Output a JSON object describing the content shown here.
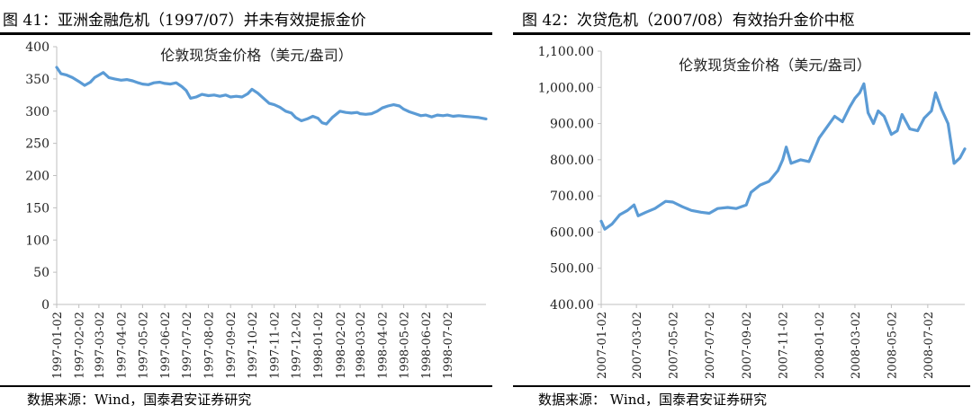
{
  "figures": [
    {
      "title": "图 41：亚洲金融危机（1997/07）并未有效提振金价",
      "source": "数据来源：Wind，国泰君安证券研究"
    },
    {
      "title": "图 42：次贷危机（2007/08）有效抬升金价中枢",
      "source": "数据来源： Wind，国泰君安证券研究"
    }
  ],
  "chart_data": [
    {
      "type": "line",
      "title": "",
      "legend": "伦敦现货金价格（美元/盎司）",
      "legend_position": "top-center",
      "grid": false,
      "line_color": "#5b9bd5",
      "ylim": [
        0,
        400
      ],
      "yticks": [
        "0",
        "50",
        "100",
        "150",
        "200",
        "250",
        "300",
        "350",
        "400"
      ],
      "xticks": [
        "1997-01-02",
        "1997-02-02",
        "1997-03-02",
        "1997-04-02",
        "1997-05-02",
        "1997-06-02",
        "1997-07-02",
        "1997-08-02",
        "1997-09-02",
        "1997-10-02",
        "1997-11-02",
        "1997-12-02",
        "1998-01-02",
        "1998-02-02",
        "1998-03-02",
        "1998-04-02",
        "1998-05-02",
        "1998-06-02",
        "1998-07-02"
      ],
      "xlim": [
        "1997-01-02",
        "1998-08-25"
      ],
      "series": [
        {
          "name": "伦敦现货金价格（美元/盎司）",
          "points": [
            [
              "1997-01-02",
              368
            ],
            [
              "1997-01-08",
              358
            ],
            [
              "1997-01-16",
              356
            ],
            [
              "1997-01-24",
              352
            ],
            [
              "1997-02-02",
              346
            ],
            [
              "1997-02-10",
              340
            ],
            [
              "1997-02-18",
              345
            ],
            [
              "1997-02-24",
              352
            ],
            [
              "1997-03-02",
              356
            ],
            [
              "1997-03-08",
              360
            ],
            [
              "1997-03-16",
              352
            ],
            [
              "1997-03-24",
              350
            ],
            [
              "1997-04-02",
              348
            ],
            [
              "1997-04-10",
              349
            ],
            [
              "1997-04-18",
              347
            ],
            [
              "1997-04-26",
              344
            ],
            [
              "1997-05-02",
              342
            ],
            [
              "1997-05-10",
              341
            ],
            [
              "1997-05-18",
              344
            ],
            [
              "1997-05-26",
              345
            ],
            [
              "1997-06-02",
              343
            ],
            [
              "1997-06-10",
              342
            ],
            [
              "1997-06-18",
              344
            ],
            [
              "1997-06-26",
              338
            ],
            [
              "1997-07-02",
              332
            ],
            [
              "1997-07-08",
              320
            ],
            [
              "1997-07-16",
              322
            ],
            [
              "1997-07-24",
              326
            ],
            [
              "1997-08-02",
              324
            ],
            [
              "1997-08-10",
              325
            ],
            [
              "1997-08-18",
              323
            ],
            [
              "1997-08-26",
              325
            ],
            [
              "1997-09-02",
              322
            ],
            [
              "1997-09-10",
              323
            ],
            [
              "1997-09-18",
              322
            ],
            [
              "1997-09-26",
              327
            ],
            [
              "1997-10-02",
              334
            ],
            [
              "1997-10-10",
              328
            ],
            [
              "1997-10-18",
              320
            ],
            [
              "1997-10-26",
              312
            ],
            [
              "1997-11-02",
              310
            ],
            [
              "1997-11-10",
              306
            ],
            [
              "1997-11-18",
              300
            ],
            [
              "1997-11-26",
              297
            ],
            [
              "1997-12-02",
              290
            ],
            [
              "1997-12-10",
              285
            ],
            [
              "1997-12-18",
              288
            ],
            [
              "1997-12-26",
              292
            ],
            [
              "1998-01-02",
              289
            ],
            [
              "1998-01-08",
              282
            ],
            [
              "1998-01-14",
              280
            ],
            [
              "1998-01-22",
              290
            ],
            [
              "1998-02-02",
              300
            ],
            [
              "1998-02-10",
              298
            ],
            [
              "1998-02-18",
              297
            ],
            [
              "1998-02-26",
              298
            ],
            [
              "1998-03-02",
              296
            ],
            [
              "1998-03-10",
              295
            ],
            [
              "1998-03-18",
              296
            ],
            [
              "1998-03-26",
              300
            ],
            [
              "1998-04-02",
              305
            ],
            [
              "1998-04-10",
              308
            ],
            [
              "1998-04-18",
              310
            ],
            [
              "1998-04-26",
              308
            ],
            [
              "1998-05-02",
              303
            ],
            [
              "1998-05-10",
              299
            ],
            [
              "1998-05-18",
              296
            ],
            [
              "1998-05-26",
              293
            ],
            [
              "1998-06-02",
              294
            ],
            [
              "1998-06-10",
              291
            ],
            [
              "1998-06-18",
              294
            ],
            [
              "1998-06-26",
              293
            ],
            [
              "1998-07-02",
              294
            ],
            [
              "1998-07-10",
              292
            ],
            [
              "1998-07-18",
              293
            ],
            [
              "1998-07-26",
              292
            ],
            [
              "1998-08-05",
              291
            ],
            [
              "1998-08-15",
              290
            ],
            [
              "1998-08-25",
              288
            ]
          ]
        }
      ]
    },
    {
      "type": "line",
      "title": "",
      "legend": "伦敦现货金价格（美元/盎司）",
      "legend_position": "top-center",
      "grid": false,
      "line_color": "#5b9bd5",
      "ylim": [
        400,
        1100
      ],
      "yticks": [
        "400.00",
        "500.00",
        "600.00",
        "700.00",
        "800.00",
        "900.00",
        "1,000.00",
        "1,100.00"
      ],
      "xticks": [
        "2007-01-02",
        "2007-03-02",
        "2007-05-02",
        "2007-07-02",
        "2007-09-02",
        "2007-11-02",
        "2008-01-02",
        "2008-03-02",
        "2008-05-02",
        "2008-07-02"
      ],
      "xlim": [
        "2007-01-02",
        "2008-09-02"
      ],
      "series": [
        {
          "name": "伦敦现货金价格（美元/盎司）",
          "points": [
            [
              "2007-01-02",
              630
            ],
            [
              "2007-01-08",
              608
            ],
            [
              "2007-01-20",
              622
            ],
            [
              "2007-02-02",
              648
            ],
            [
              "2007-02-15",
              660
            ],
            [
              "2007-02-26",
              675
            ],
            [
              "2007-03-05",
              645
            ],
            [
              "2007-03-18",
              655
            ],
            [
              "2007-04-02",
              665
            ],
            [
              "2007-04-20",
              685
            ],
            [
              "2007-05-02",
              683
            ],
            [
              "2007-05-18",
              670
            ],
            [
              "2007-06-02",
              660
            ],
            [
              "2007-06-18",
              655
            ],
            [
              "2007-07-02",
              652
            ],
            [
              "2007-07-16",
              665
            ],
            [
              "2007-08-02",
              668
            ],
            [
              "2007-08-16",
              665
            ],
            [
              "2007-09-02",
              675
            ],
            [
              "2007-09-10",
              710
            ],
            [
              "2007-09-25",
              730
            ],
            [
              "2007-10-10",
              740
            ],
            [
              "2007-10-25",
              770
            ],
            [
              "2007-11-02",
              800
            ],
            [
              "2007-11-08",
              835
            ],
            [
              "2007-11-16",
              790
            ],
            [
              "2007-12-02",
              800
            ],
            [
              "2007-12-16",
              795
            ],
            [
              "2008-01-02",
              860
            ],
            [
              "2008-01-15",
              890
            ],
            [
              "2008-01-28",
              920
            ],
            [
              "2008-02-10",
              905
            ],
            [
              "2008-02-22",
              945
            ],
            [
              "2008-03-02",
              970
            ],
            [
              "2008-03-10",
              985
            ],
            [
              "2008-03-17",
              1010
            ],
            [
              "2008-03-24",
              930
            ],
            [
              "2008-04-02",
              900
            ],
            [
              "2008-04-10",
              935
            ],
            [
              "2008-04-20",
              920
            ],
            [
              "2008-05-02",
              870
            ],
            [
              "2008-05-12",
              880
            ],
            [
              "2008-05-20",
              925
            ],
            [
              "2008-06-02",
              885
            ],
            [
              "2008-06-15",
              880
            ],
            [
              "2008-06-26",
              915
            ],
            [
              "2008-07-08",
              935
            ],
            [
              "2008-07-15",
              985
            ],
            [
              "2008-07-25",
              940
            ],
            [
              "2008-08-05",
              900
            ],
            [
              "2008-08-15",
              790
            ],
            [
              "2008-08-25",
              805
            ],
            [
              "2008-09-02",
              830
            ]
          ]
        }
      ]
    }
  ]
}
